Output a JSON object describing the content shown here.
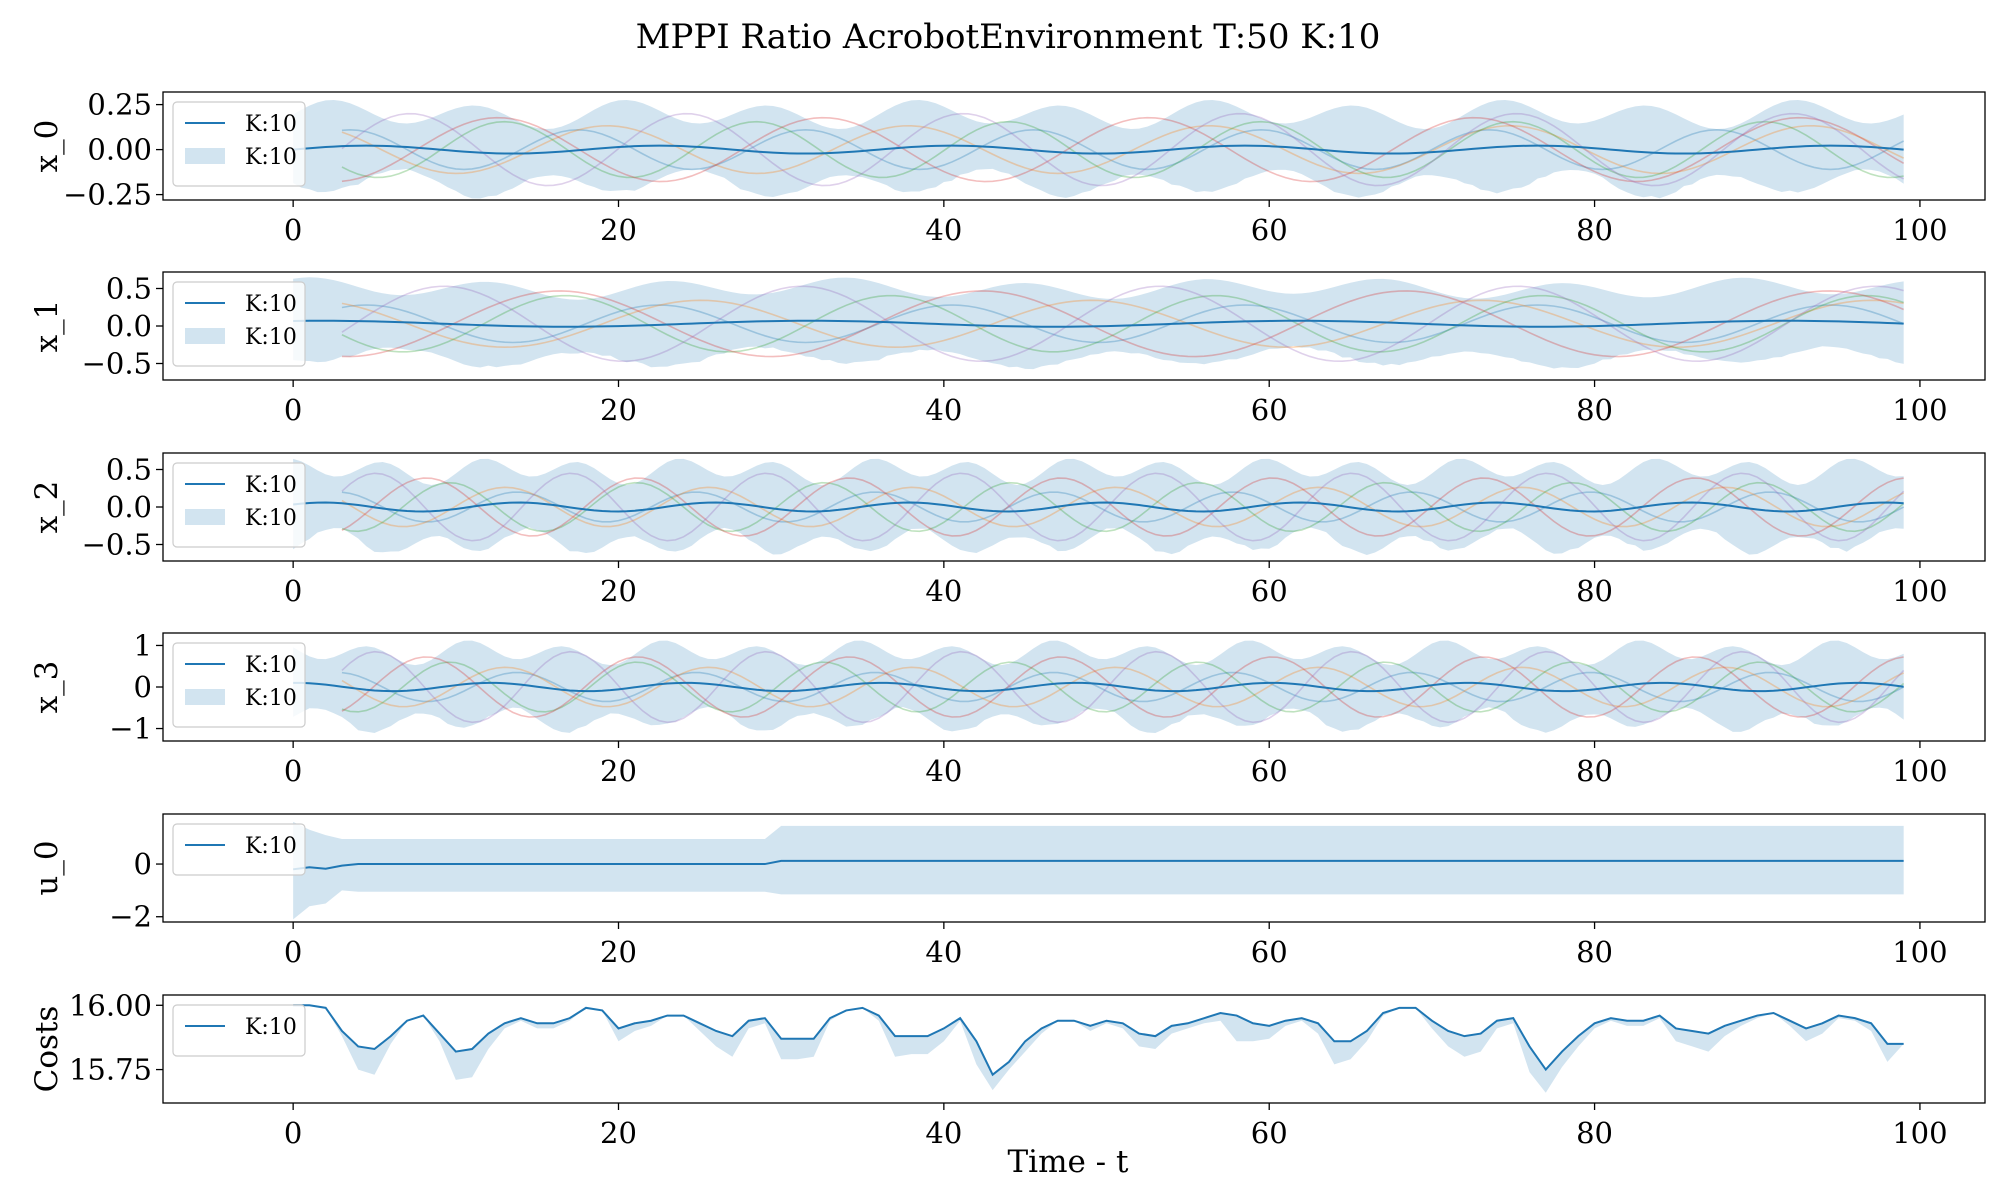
{
  "figure": {
    "title": "MPPI Ratio AcrobotEnvironment T:50 K:10",
    "xlabel": "Time - t"
  },
  "colors": {
    "mean_line": "#1f77b4",
    "band_fill": "#1f77b4",
    "rollouts": [
      "#1f77b4",
      "#ff7f0e",
      "#2ca02c",
      "#d62728",
      "#9467bd"
    ]
  },
  "chart_data": [
    {
      "type": "line",
      "ylabel": "x_0",
      "xlim": [
        -8,
        104
      ],
      "ylim": [
        -0.28,
        0.32
      ],
      "xticks": [
        0,
        20,
        40,
        60,
        80,
        100
      ],
      "xtick_labels": [
        "0",
        "20",
        "40",
        "60",
        "80",
        "100"
      ],
      "yticks": [
        -0.25,
        0.0,
        0.25
      ],
      "ytick_labels": [
        "−0.25",
        "0.00",
        "0.25"
      ],
      "legend": {
        "location": "upper-left",
        "entries": [
          {
            "kind": "line",
            "label": "K:10"
          },
          {
            "kind": "band",
            "label": "K:10"
          }
        ]
      },
      "series": [
        {
          "kind": "mean",
          "label": "K:10",
          "x_range": [
            0,
            99
          ],
          "amplitude": 0.022,
          "period": 18,
          "phase": 0.0
        },
        {
          "kind": "band",
          "label": "K:10",
          "x_range": [
            0,
            99
          ],
          "half_width": [
            0.13,
            0.26
          ],
          "period": 9
        },
        {
          "kind": "rollouts",
          "count": 5,
          "x_range": [
            3,
            99
          ],
          "amplitude": [
            0.11,
            0.2
          ],
          "period": [
            14,
            20
          ]
        }
      ]
    },
    {
      "type": "line",
      "ylabel": "x_1",
      "xlim": [
        -8,
        104
      ],
      "ylim": [
        -0.72,
        0.72
      ],
      "xticks": [
        0,
        20,
        40,
        60,
        80,
        100
      ],
      "xtick_labels": [
        "0",
        "20",
        "40",
        "60",
        "80",
        "100"
      ],
      "yticks": [
        -0.5,
        0.0,
        0.5
      ],
      "ytick_labels": [
        "−0.5",
        "0.0",
        "0.5"
      ],
      "legend": {
        "location": "upper-left",
        "entries": [
          {
            "kind": "line",
            "label": "K:10"
          },
          {
            "kind": "band",
            "label": "K:10"
          }
        ]
      },
      "series": [
        {
          "kind": "mean",
          "label": "K:10",
          "x_range": [
            0,
            99
          ],
          "amplitude": 0.04,
          "period": 30,
          "phase": 1.2,
          "offset": 0.03
        },
        {
          "kind": "band",
          "label": "K:10",
          "x_range": [
            0,
            99
          ],
          "half_width": [
            0.36,
            0.58
          ],
          "period": 11
        },
        {
          "kind": "rollouts",
          "count": 5,
          "x_range": [
            3,
            99
          ],
          "amplitude": [
            0.25,
            0.5
          ],
          "period": [
            18,
            26
          ]
        }
      ]
    },
    {
      "type": "line",
      "ylabel": "x_2",
      "xlim": [
        -8,
        104
      ],
      "ylim": [
        -0.72,
        0.72
      ],
      "xticks": [
        0,
        20,
        40,
        60,
        80,
        100
      ],
      "xtick_labels": [
        "0",
        "20",
        "40",
        "60",
        "80",
        "100"
      ],
      "yticks": [
        -0.5,
        0.0,
        0.5
      ],
      "ytick_labels": [
        "−0.5",
        "0.0",
        "0.5"
      ],
      "legend": {
        "location": "upper-left",
        "entries": [
          {
            "kind": "line",
            "label": "K:10"
          },
          {
            "kind": "band",
            "label": "K:10"
          }
        ]
      },
      "series": [
        {
          "kind": "mean",
          "label": "K:10",
          "x_range": [
            0,
            99
          ],
          "amplitude": 0.06,
          "period": 12,
          "phase": 0.6
        },
        {
          "kind": "band",
          "label": "K:10",
          "x_range": [
            0,
            99
          ],
          "half_width": [
            0.35,
            0.62
          ],
          "period": 6
        },
        {
          "kind": "rollouts",
          "count": 5,
          "x_range": [
            3,
            99
          ],
          "amplitude": [
            0.2,
            0.45
          ],
          "period": [
            11,
            13
          ]
        }
      ]
    },
    {
      "type": "line",
      "ylabel": "x_3",
      "xlim": [
        -8,
        104
      ],
      "ylim": [
        -1.3,
        1.3
      ],
      "xticks": [
        0,
        20,
        40,
        60,
        80,
        100
      ],
      "xtick_labels": [
        "0",
        "20",
        "40",
        "60",
        "80",
        "100"
      ],
      "yticks": [
        -1,
        0,
        1
      ],
      "ytick_labels": [
        "−1",
        "0",
        "1"
      ],
      "legend": {
        "location": "upper-left",
        "entries": [
          {
            "kind": "line",
            "label": "K:10"
          },
          {
            "kind": "band",
            "label": "K:10"
          }
        ]
      },
      "series": [
        {
          "kind": "mean",
          "label": "K:10",
          "x_range": [
            0,
            99
          ],
          "amplitude": 0.1,
          "period": 12,
          "phase": 1.5
        },
        {
          "kind": "band",
          "label": "K:10",
          "x_range": [
            0,
            99
          ],
          "half_width": [
            0.6,
            1.05
          ],
          "period": 6
        },
        {
          "kind": "rollouts",
          "count": 5,
          "x_range": [
            3,
            99
          ],
          "amplitude": [
            0.35,
            0.85
          ],
          "period": [
            11,
            13
          ]
        }
      ]
    },
    {
      "type": "line",
      "ylabel": "u_0",
      "xlim": [
        -8,
        104
      ],
      "ylim": [
        -2.2,
        1.9
      ],
      "xticks": [
        0,
        20,
        40,
        60,
        80,
        100
      ],
      "xtick_labels": [
        "0",
        "20",
        "40",
        "60",
        "80",
        "100"
      ],
      "yticks": [
        -2,
        0
      ],
      "ytick_labels": [
        "−2",
        "0"
      ],
      "legend": {
        "location": "upper-left",
        "entries": [
          {
            "kind": "line",
            "label": "K:10"
          }
        ]
      },
      "series": [
        {
          "kind": "mean",
          "label": "K:10",
          "x": [
            0,
            1,
            2,
            3,
            4,
            28,
            29,
            30,
            99
          ],
          "y": [
            -0.2,
            -0.12,
            -0.18,
            -0.06,
            0.0,
            0.0,
            0.0,
            0.12,
            0.12
          ]
        },
        {
          "kind": "band",
          "label": "K:10",
          "x": [
            0,
            1,
            2,
            3,
            4,
            28,
            29,
            30,
            99
          ],
          "upper": [
            1.6,
            1.3,
            1.1,
            0.95,
            0.95,
            0.95,
            0.95,
            1.45,
            1.45
          ],
          "lower": [
            -2.1,
            -1.6,
            -1.5,
            -1.0,
            -1.05,
            -1.05,
            -1.05,
            -1.15,
            -1.15
          ]
        }
      ]
    },
    {
      "type": "line",
      "ylabel": "Costs",
      "xlim": [
        -8,
        104
      ],
      "ylim": [
        15.62,
        16.04
      ],
      "xticks": [
        0,
        20,
        40,
        60,
        80,
        100
      ],
      "xtick_labels": [
        "0",
        "20",
        "40",
        "60",
        "80",
        "100"
      ],
      "yticks": [
        15.75,
        16.0
      ],
      "ytick_labels": [
        "15.75",
        "16.00"
      ],
      "legend": {
        "location": "upper-left",
        "entries": [
          {
            "kind": "line",
            "label": "K:10"
          }
        ]
      },
      "series": [
        {
          "kind": "mean",
          "label": "K:10",
          "x": [
            0,
            1,
            2,
            3,
            4,
            5,
            6,
            7,
            8,
            9,
            10,
            11,
            12,
            13,
            14,
            15,
            16,
            17,
            18,
            19,
            20,
            21,
            22,
            23,
            24,
            25,
            26,
            27,
            28,
            29,
            30,
            31,
            32,
            33,
            34,
            35,
            36,
            37,
            38,
            39,
            40,
            41,
            42,
            43,
            44,
            45,
            46,
            47,
            48,
            49,
            50,
            51,
            52,
            53,
            54,
            55,
            56,
            57,
            58,
            59,
            60,
            61,
            62,
            63,
            64,
            65,
            66,
            67,
            68,
            69,
            70,
            71,
            72,
            73,
            74,
            75,
            76,
            77,
            78,
            79,
            80,
            81,
            82,
            83,
            84,
            85,
            86,
            87,
            88,
            89,
            90,
            91,
            92,
            93,
            94,
            95,
            96,
            97,
            98,
            99
          ],
          "y": [
            16.0,
            16.0,
            15.99,
            15.9,
            15.84,
            15.83,
            15.88,
            15.94,
            15.96,
            15.89,
            15.82,
            15.83,
            15.89,
            15.93,
            15.95,
            15.93,
            15.93,
            15.95,
            15.99,
            15.98,
            15.91,
            15.93,
            15.94,
            15.96,
            15.96,
            15.93,
            15.9,
            15.88,
            15.94,
            15.95,
            15.87,
            15.87,
            15.87,
            15.95,
            15.98,
            15.99,
            15.96,
            15.88,
            15.88,
            15.88,
            15.91,
            15.95,
            15.86,
            15.73,
            15.78,
            15.86,
            15.91,
            15.94,
            15.94,
            15.92,
            15.94,
            15.93,
            15.89,
            15.88,
            15.92,
            15.93,
            15.95,
            15.97,
            15.96,
            15.93,
            15.92,
            15.94,
            15.95,
            15.93,
            15.86,
            15.86,
            15.9,
            15.97,
            15.99,
            15.99,
            15.94,
            15.9,
            15.88,
            15.89,
            15.94,
            15.95,
            15.84,
            15.75,
            15.82,
            15.88,
            15.93,
            15.95,
            15.94,
            15.94,
            15.96,
            15.91,
            15.9,
            15.89,
            15.92,
            15.94,
            15.96,
            15.97,
            15.94,
            15.91,
            15.93,
            15.96,
            15.95,
            15.93,
            15.85,
            15.85
          ]
        },
        {
          "kind": "band",
          "label": "K:10",
          "below_only": true,
          "depth": [
            0.0,
            0.0,
            0.0,
            0.02,
            0.09,
            0.1,
            0.03,
            0.0,
            0.0,
            0.03,
            0.11,
            0.11,
            0.06,
            0.02,
            0.01,
            0.02,
            0.02,
            0.01,
            0.0,
            0.0,
            0.05,
            0.03,
            0.02,
            0.0,
            0.0,
            0.03,
            0.06,
            0.08,
            0.03,
            0.02,
            0.08,
            0.08,
            0.07,
            0.01,
            0.0,
            0.0,
            0.02,
            0.08,
            0.07,
            0.07,
            0.05,
            0.01,
            0.09,
            0.06,
            0.03,
            0.04,
            0.02,
            0.0,
            0.0,
            0.02,
            0.01,
            0.02,
            0.05,
            0.05,
            0.03,
            0.02,
            0.02,
            0.03,
            0.1,
            0.07,
            0.05,
            0.02,
            0.01,
            0.04,
            0.09,
            0.07,
            0.04,
            0.01,
            0.0,
            0.0,
            0.03,
            0.06,
            0.08,
            0.07,
            0.03,
            0.02,
            0.1,
            0.09,
            0.06,
            0.04,
            0.02,
            0.01,
            0.02,
            0.02,
            0.01,
            0.05,
            0.06,
            0.07,
            0.04,
            0.02,
            0.01,
            0.0,
            0.02,
            0.05,
            0.04,
            0.01,
            0.01,
            0.03,
            0.07,
            0.0
          ]
        }
      ]
    }
  ]
}
